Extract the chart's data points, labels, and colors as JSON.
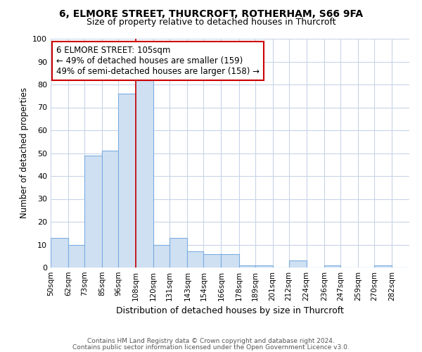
{
  "title1": "6, ELMORE STREET, THURCROFT, ROTHERHAM, S66 9FA",
  "title2": "Size of property relative to detached houses in Thurcroft",
  "xlabel": "Distribution of detached houses by size in Thurcroft",
  "ylabel": "Number of detached properties",
  "bin_labels": [
    "50sqm",
    "62sqm",
    "73sqm",
    "85sqm",
    "96sqm",
    "108sqm",
    "120sqm",
    "131sqm",
    "143sqm",
    "154sqm",
    "166sqm",
    "178sqm",
    "189sqm",
    "201sqm",
    "212sqm",
    "224sqm",
    "236sqm",
    "247sqm",
    "259sqm",
    "270sqm",
    "282sqm"
  ],
  "bar_heights": [
    13,
    10,
    49,
    51,
    76,
    82,
    10,
    13,
    7,
    6,
    6,
    1,
    1,
    0,
    3,
    0,
    1,
    0,
    0,
    1,
    0
  ],
  "bar_color": "#cfe0f3",
  "bar_edge_color": "#7aade0",
  "bin_edges": [
    50,
    62,
    73,
    85,
    96,
    108,
    120,
    131,
    143,
    154,
    166,
    178,
    189,
    201,
    212,
    224,
    236,
    247,
    259,
    270,
    282,
    294
  ],
  "annotation_title": "6 ELMORE STREET: 105sqm",
  "annotation_line1": "← 49% of detached houses are smaller (159)",
  "annotation_line2": "49% of semi-detached houses are larger (158) →",
  "footer1": "Contains HM Land Registry data © Crown copyright and database right 2024.",
  "footer2": "Contains public sector information licensed under the Open Government Licence v3.0.",
  "ylim": [
    0,
    100
  ],
  "yticks": [
    0,
    10,
    20,
    30,
    40,
    50,
    60,
    70,
    80,
    90,
    100
  ],
  "background_color": "#ffffff",
  "grid_color": "#c8d4e8",
  "property_line_x": 108,
  "property_line_color": "#cc0000"
}
